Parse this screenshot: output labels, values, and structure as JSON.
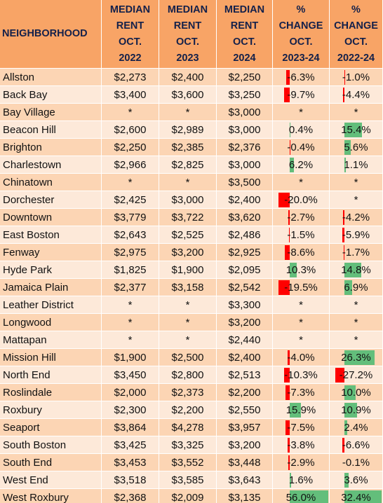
{
  "table": {
    "header": [
      [
        "NEIGHBORHOOD"
      ],
      [
        "MEDIAN",
        "RENT",
        "OCT.",
        "2022"
      ],
      [
        "MEDIAN",
        "RENT",
        "OCT.",
        "2023"
      ],
      [
        "MEDIAN",
        "RENT",
        "OCT.",
        "2024"
      ],
      [
        "%",
        "CHANGE",
        "OCT.",
        "2023-24"
      ],
      [
        "%",
        "CHANGE",
        "OCT.",
        "2022-24"
      ]
    ],
    "rows": [
      [
        "Allston",
        "$2,273",
        "$2,400",
        "$2,250",
        {
          "value": -6.3,
          "label": "-6.3%"
        },
        {
          "value": -1.0,
          "label": "-1.0%"
        }
      ],
      [
        "Back Bay",
        "$3,400",
        "$3,600",
        "$3,250",
        {
          "value": -9.7,
          "label": "-9.7%"
        },
        {
          "value": -4.4,
          "label": "-4.4%"
        }
      ],
      [
        "Bay Village",
        "*",
        "*",
        "$3,000",
        "*",
        "*"
      ],
      [
        "Beacon Hill",
        "$2,600",
        "$2,989",
        "$3,000",
        {
          "value": 0.4,
          "label": "0.4%"
        },
        {
          "value": 15.4,
          "label": "15.4%"
        }
      ],
      [
        "Brighton",
        "$2,250",
        "$2,385",
        "$2,376",
        {
          "value": -0.4,
          "label": "-0.4%"
        },
        {
          "value": 5.6,
          "label": "5.6%"
        }
      ],
      [
        "Charlestown",
        "$2,966",
        "$2,825",
        "$3,000",
        {
          "value": 6.2,
          "label": "6.2%"
        },
        {
          "value": 1.1,
          "label": "1.1%"
        }
      ],
      [
        "Chinatown",
        "*",
        "*",
        "$3,500",
        "*",
        "*"
      ],
      [
        "Dorchester",
        "$2,425",
        "$3,000",
        "$2,400",
        {
          "value": -20.0,
          "label": "-20.0%"
        },
        "*"
      ],
      [
        "Downtown",
        "$3,779",
        "$3,722",
        "$3,620",
        {
          "value": -2.7,
          "label": "-2.7%"
        },
        {
          "value": -4.2,
          "label": "-4.2%"
        }
      ],
      [
        "East Boston",
        "$2,643",
        "$2,525",
        "$2,486",
        {
          "value": -1.5,
          "label": "-1.5%"
        },
        {
          "value": -5.9,
          "label": "-5.9%"
        }
      ],
      [
        "Fenway",
        "$2,975",
        "$3,200",
        "$2,925",
        {
          "value": -8.6,
          "label": "-8.6%"
        },
        {
          "value": -1.7,
          "label": "-1.7%"
        }
      ],
      [
        "Hyde Park",
        "$1,825",
        "$1,900",
        "$2,095",
        {
          "value": 10.3,
          "label": "10.3%"
        },
        {
          "value": 14.8,
          "label": "14.8%"
        }
      ],
      [
        "Jamaica Plain",
        "$2,377",
        "$3,158",
        "$2,542",
        {
          "value": -19.5,
          "label": "-19.5%"
        },
        {
          "value": 6.9,
          "label": "6.9%"
        }
      ],
      [
        "Leather District",
        "*",
        "*",
        "$3,300",
        "*",
        "*"
      ],
      [
        "Longwood",
        "*",
        "*",
        "$3,200",
        "*",
        "*"
      ],
      [
        "Mattapan",
        "*",
        "*",
        "$2,440",
        "*",
        "*"
      ],
      [
        "Mission Hill",
        "$1,900",
        "$2,500",
        "$2,400",
        {
          "value": -4.0,
          "label": "-4.0%"
        },
        {
          "value": 26.3,
          "label": "26.3%"
        }
      ],
      [
        "North End",
        "$3,450",
        "$2,800",
        "$2,513",
        {
          "value": -10.3,
          "label": "-10.3%"
        },
        {
          "value": -27.2,
          "label": "-27.2%"
        }
      ],
      [
        "Roslindale",
        "$2,000",
        "$2,373",
        "$2,200",
        {
          "value": -7.3,
          "label": "-7.3%"
        },
        {
          "value": 10.0,
          "label": "10.0%"
        }
      ],
      [
        "Roxbury",
        "$2,300",
        "$2,200",
        "$2,550",
        {
          "value": 15.9,
          "label": "15.9%"
        },
        {
          "value": 10.9,
          "label": "10.9%"
        }
      ],
      [
        "Seaport",
        "$3,864",
        "$4,278",
        "$3,957",
        {
          "value": -7.5,
          "label": "-7.5%"
        },
        {
          "value": 2.4,
          "label": "2.4%"
        }
      ],
      [
        "South Boston",
        "$3,425",
        "$3,325",
        "$3,200",
        {
          "value": -3.8,
          "label": "-3.8%"
        },
        {
          "value": -6.6,
          "label": "-6.6%"
        }
      ],
      [
        "South End",
        "$3,453",
        "$3,552",
        "$3,448",
        {
          "value": -2.9,
          "label": "-2.9%"
        },
        {
          "value": -0.1,
          "label": "-0.1%"
        }
      ],
      [
        "West End",
        "$3,518",
        "$3,585",
        "$3,643",
        {
          "value": 1.6,
          "label": "1.6%"
        },
        {
          "value": 3.6,
          "label": "3.6%"
        }
      ],
      [
        "West Roxbury",
        "$2,368",
        "$2,009",
        "$3,135",
        {
          "value": 56.0,
          "label": "56.0%"
        },
        {
          "value": 32.4,
          "label": "32.4%"
        }
      ]
    ]
  }
}
